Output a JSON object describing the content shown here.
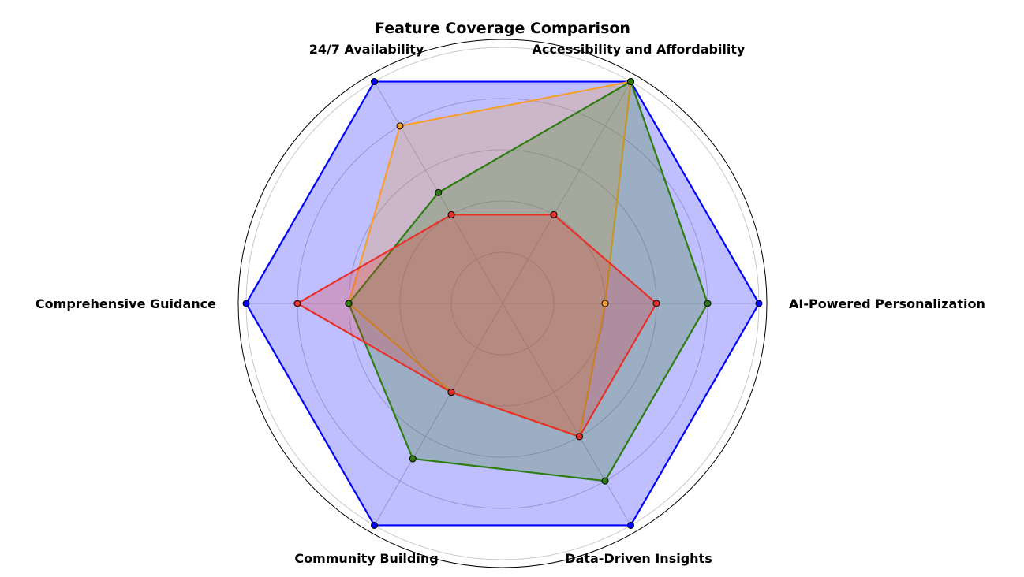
{
  "chart_data": {
    "type": "radar",
    "title": "Feature Coverage Comparison",
    "categories": [
      "AI-Powered Personalization",
      "Accessibility and Affordability",
      "24/7 Availability",
      "Comprehensive Guidance",
      "Community Building",
      "Data-Driven Insights"
    ],
    "rmax": 10,
    "rings": [
      2,
      4,
      6,
      8,
      10
    ],
    "grid": true,
    "series": [
      {
        "values": [
          10,
          10,
          10,
          10,
          10,
          10
        ],
        "color": "#0000ff",
        "fill": "#0000ff"
      },
      {
        "values": [
          4,
          10,
          8,
          6,
          4,
          6
        ],
        "color": "#f5a02c",
        "fill": "#f5a02c"
      },
      {
        "values": [
          8,
          10,
          5,
          6,
          7,
          8
        ],
        "color": "#2e7d12",
        "fill": "#2e7d12"
      },
      {
        "values": [
          6,
          4,
          4,
          8,
          4,
          6
        ],
        "color": "#e8302a",
        "fill": "#e8302a"
      }
    ]
  }
}
